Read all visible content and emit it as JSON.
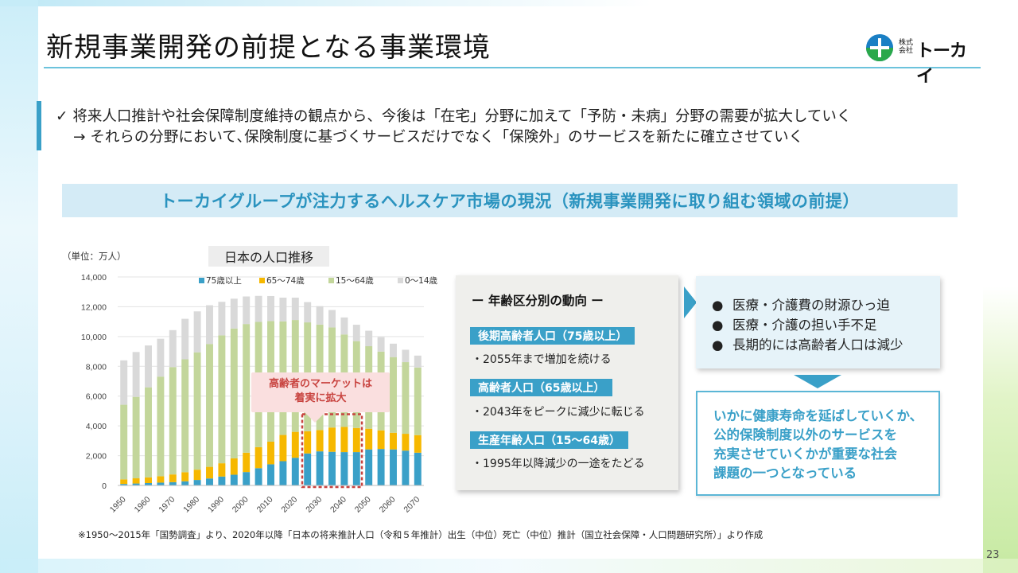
{
  "slide": {
    "title": "新規事業開発の前提となる事業環境",
    "logo": {
      "small_line1": "株式",
      "small_line2": "会社",
      "name": "トーカイ"
    },
    "summary": {
      "line1": "✓ 将来人口推計や社会保障制度維持の観点から、今後は「在宅」分野に加えて「予防・未病」分野の需要が拡大していく",
      "line2": "→ それらの分野において､保険制度に基づくサービスだけでなく「保険外」のサービスを新たに確立させていく"
    },
    "section_banner": "トーカイグループが注力するヘルスケア市場の現況（新規事業開発に取り組む領域の前提）",
    "callout": {
      "line1": "高齢者のマーケットは",
      "line2": "着実に拡大"
    },
    "age_trends": {
      "heading": "ー 年齢区分別の動向 ー",
      "items": [
        {
          "tag": "後期高齢者人口（75歳以上）",
          "desc": "・2055年まで増加を続ける"
        },
        {
          "tag": "高齢者人口（65歳以上）",
          "desc": "・2043年をピークに減少に転じる"
        },
        {
          "tag": "生産年齢人口（15～64歳）",
          "desc": "・1995年以降減少の一途をたどる"
        }
      ]
    },
    "issues": [
      "医療・介護費の財源ひっ迫",
      "医療・介護の担い手不足",
      "長期的には高齢者人口は減少"
    ],
    "issue_bullet": "●",
    "conclusion": [
      "いかに健康寿命を延ばしていくか、",
      "公的保険制度以外のサービスを",
      "充実させていくかが重要な社会",
      "課題の一つとなっている"
    ],
    "footnote": "※1950～2015年「国勢調査」より、2020年以降「日本の将来推計人口（令和５年推計）出生（中位）死亡（中位）推計（国立社会保障・人口問題研究所）」より作成",
    "page_number": "23",
    "colors": {
      "accent": "#3aa0c8",
      "banner_bg": "#d4ebf6",
      "callout_text": "#c8433f"
    }
  },
  "chart_data": {
    "type": "bar",
    "stacked": true,
    "title": "日本の人口推移",
    "unit_label": "（単位：万人）",
    "ylim": [
      0,
      14000
    ],
    "yticks": [
      "0",
      "2,000",
      "4,000",
      "6,000",
      "8,000",
      "10,000",
      "12,000",
      "14,000"
    ],
    "ytick_values": [
      0,
      2000,
      4000,
      6000,
      8000,
      10000,
      12000,
      14000
    ],
    "x": [
      1950,
      1955,
      1960,
      1965,
      1970,
      1975,
      1980,
      1985,
      1990,
      1995,
      2000,
      2005,
      2010,
      2015,
      2020,
      2025,
      2030,
      2035,
      2040,
      2045,
      2050,
      2055,
      2060,
      2065,
      2070
    ],
    "xtick_labels": [
      "1950",
      "1960",
      "1970",
      "1980",
      "1990",
      "2000",
      "2010",
      "2020",
      "2030",
      "2040",
      "2050",
      "2060",
      "2070"
    ],
    "legend_position": "top",
    "series": [
      {
        "name": "75歳以上",
        "color": "#3aa0c8",
        "values": [
          100,
          130,
          160,
          190,
          220,
          280,
          370,
          470,
          600,
          720,
          900,
          1160,
          1420,
          1630,
          1860,
          2150,
          2290,
          2260,
          2240,
          2240,
          2420,
          2450,
          2420,
          2340,
          2200
        ]
      },
      {
        "name": "65～74歳",
        "color": "#f6b800",
        "values": [
          310,
          350,
          380,
          430,
          520,
          610,
          690,
          780,
          890,
          1100,
          1300,
          1410,
          1520,
          1760,
          1740,
          1490,
          1430,
          1630,
          1690,
          1620,
          1390,
          1250,
          1120,
          1130,
          1180
        ]
      },
      {
        "name": "15～64歳",
        "color": "#c3d69b",
        "values": [
          5010,
          5470,
          6050,
          6690,
          7210,
          7580,
          7880,
          8250,
          8590,
          8720,
          8640,
          8410,
          8100,
          7630,
          7510,
          7310,
          7080,
          6720,
          6210,
          5830,
          5540,
          5290,
          5080,
          4810,
          4540
        ]
      },
      {
        "name": "0～14歳",
        "color": "#d9d9d9",
        "values": [
          2980,
          3010,
          2810,
          2540,
          2480,
          2720,
          2750,
          2600,
          2250,
          2000,
          1850,
          1750,
          1680,
          1590,
          1500,
          1360,
          1240,
          1170,
          1140,
          1100,
          1040,
          970,
          900,
          830,
          800
        ]
      }
    ],
    "highlight_range": [
      2025,
      2045
    ]
  }
}
